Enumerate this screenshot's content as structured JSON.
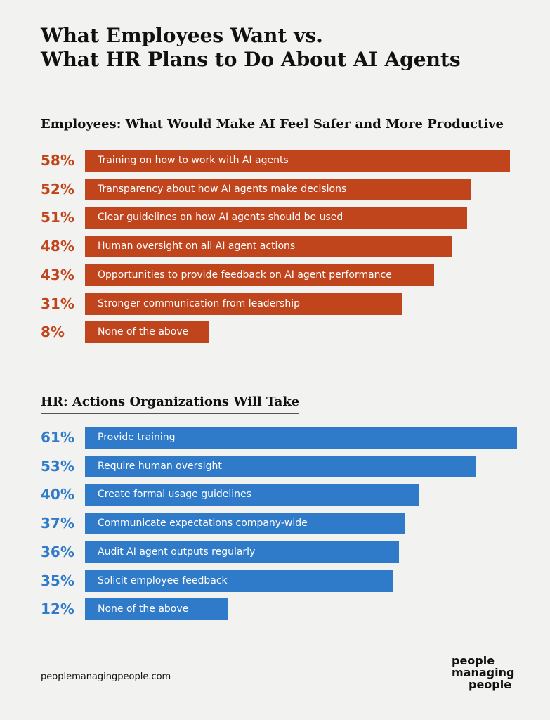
{
  "title_line1": "What Employees Want vs.",
  "title_line2": "What HR Plans to Do About AI Agents",
  "footer": "peoplemanagingpeople.com",
  "logo": [
    "people",
    "managing",
    "people"
  ],
  "colors": {
    "employees": "#c1451c",
    "hr": "#2f7bc9"
  },
  "chart_data": [
    {
      "type": "bar",
      "orientation": "horizontal",
      "title": "Employees: What Would Make AI Feel Safer and More Productive",
      "categories": [
        "Training on how to work with AI agents",
        "Transparency about how AI agents make decisions",
        "Clear guidelines on how AI agents should be used",
        "Human oversight on all AI agent actions",
        "Opportunities to provide feedback on AI agent performance",
        "Stronger communication from leadership",
        "None of the above"
      ],
      "values": [
        58,
        52,
        51,
        48,
        43,
        31,
        8
      ],
      "labels": [
        "58%",
        "52%",
        "51%",
        "48%",
        "43%",
        "31%",
        "8%"
      ]
    },
    {
      "type": "bar",
      "orientation": "horizontal",
      "title": "HR: Actions Organizations Will Take",
      "categories": [
        "Provide training",
        "Require human oversight",
        "Create formal usage guidelines",
        "Communicate expectations company-wide",
        "Audit AI agent outputs regularly",
        "Solicit employee feedback",
        "None of the above"
      ],
      "values": [
        61,
        53,
        40,
        37,
        36,
        35,
        12
      ],
      "labels": [
        "61%",
        "53%",
        "40%",
        "37%",
        "36%",
        "35%",
        "12%"
      ]
    }
  ]
}
